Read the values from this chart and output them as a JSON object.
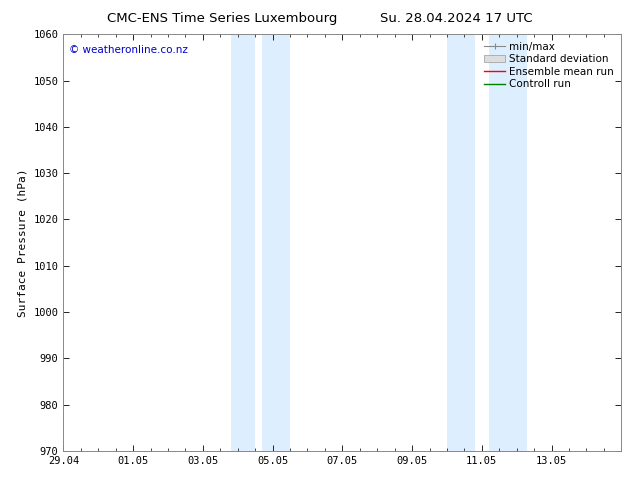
{
  "title_left": "CMC-ENS Time Series Luxembourg",
  "title_right": "Su. 28.04.2024 17 UTC",
  "ylabel": "Surface Pressure (hPa)",
  "ylim": [
    970,
    1060
  ],
  "yticks": [
    970,
    980,
    990,
    1000,
    1010,
    1020,
    1030,
    1040,
    1050,
    1060
  ],
  "xlim_start": 0,
  "xlim_end": 16,
  "xtick_labels": [
    "29.04",
    "01.05",
    "03.05",
    "05.05",
    "07.05",
    "09.05",
    "11.05",
    "13.05"
  ],
  "xtick_positions": [
    0,
    2,
    4,
    6,
    8,
    10,
    12,
    14
  ],
  "shaded_bands": [
    {
      "xmin": 4.8,
      "xmax": 5.5
    },
    {
      "xmin": 5.7,
      "xmax": 6.5
    },
    {
      "xmin": 11.0,
      "xmax": 11.8
    },
    {
      "xmin": 12.2,
      "xmax": 13.3
    }
  ],
  "band_color": "#ddeeff",
  "background_color": "#ffffff",
  "watermark_text": "© weatheronline.co.nz",
  "watermark_color": "#0000cc",
  "legend_labels": [
    "min/max",
    "Standard deviation",
    "Ensemble mean run",
    "Controll run"
  ],
  "legend_colors": [
    "#888888",
    "#cccccc",
    "#ff0000",
    "#008000"
  ],
  "title_fontsize": 9.5,
  "axis_label_fontsize": 8,
  "tick_fontsize": 7.5,
  "legend_fontsize": 7.5
}
